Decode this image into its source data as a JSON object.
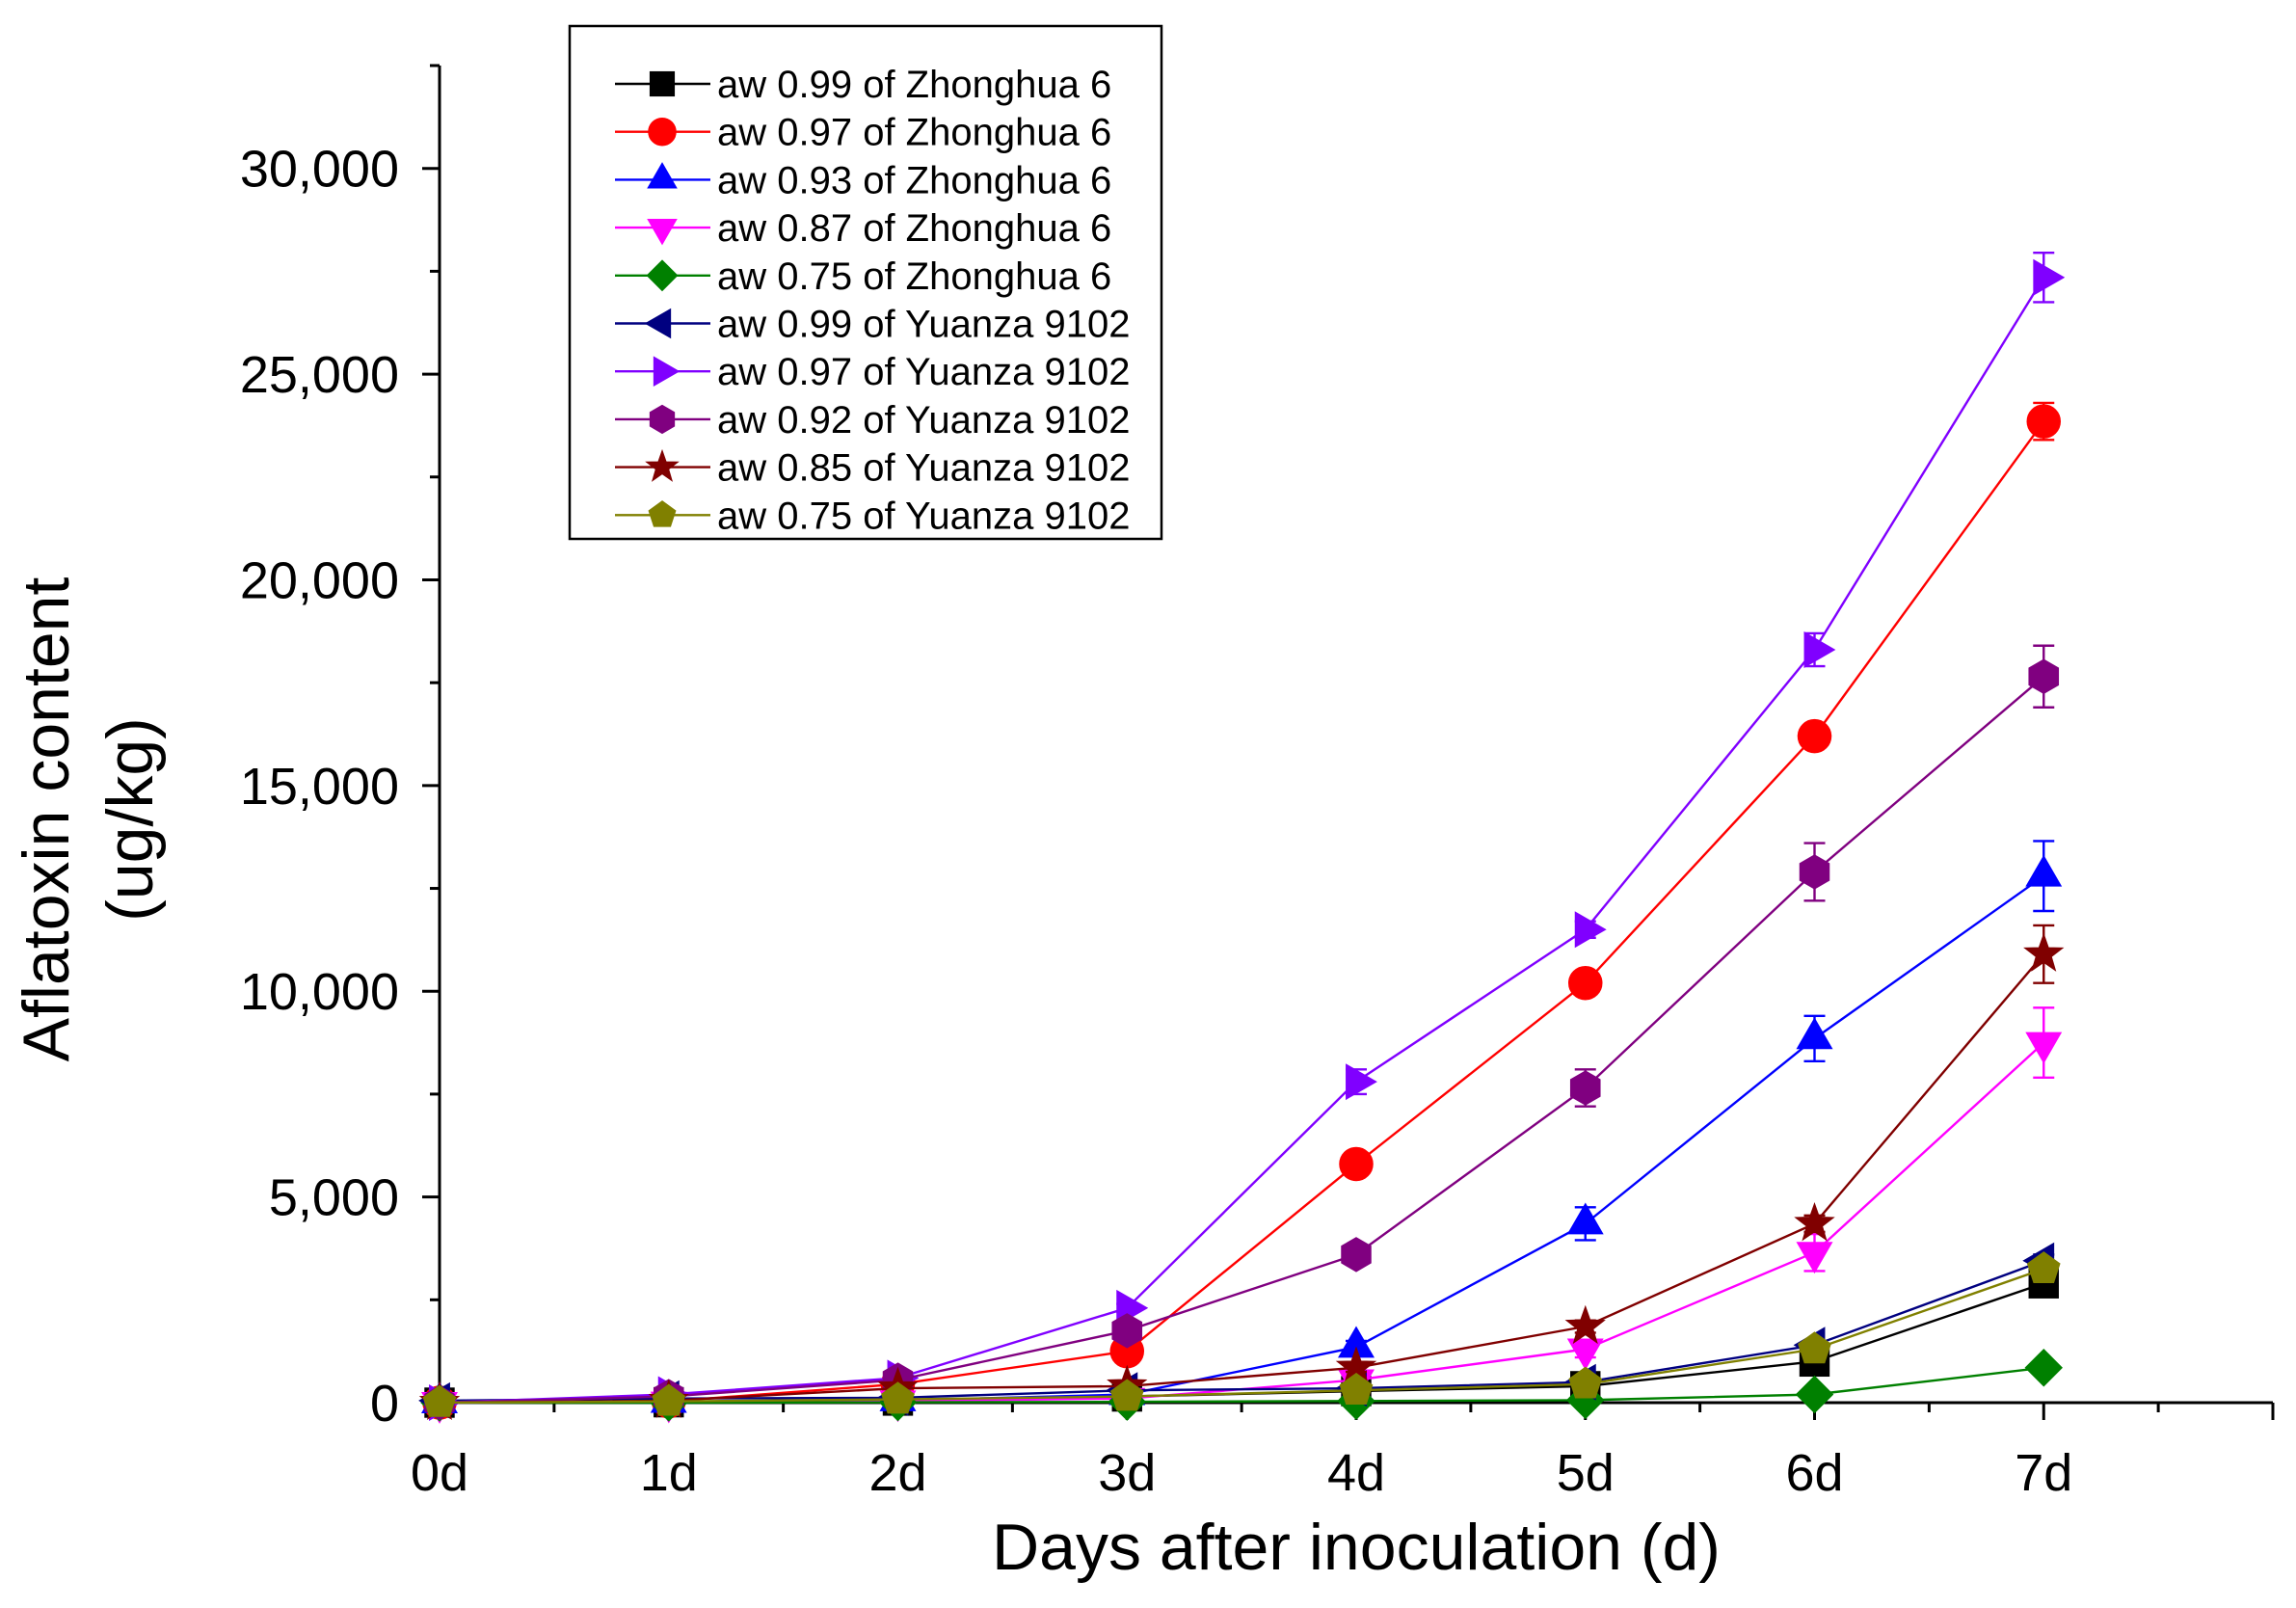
{
  "chart_data": {
    "type": "line",
    "xlabel": "Days after inoculation (d)",
    "ylabel": "Aflatoxin content",
    "ylabel_unit": "(ug/kg)",
    "x": [
      0,
      1,
      2,
      3,
      4,
      5,
      6,
      7
    ],
    "x_tick_labels": [
      "0d",
      "1d",
      "2d",
      "3d",
      "4d",
      "5d",
      "6d",
      "7d"
    ],
    "xlim": [
      0,
      8
    ],
    "ylim": [
      0,
      32500
    ],
    "y_ticks": [
      0,
      5000,
      10000,
      15000,
      20000,
      25000,
      30000
    ],
    "y_tick_labels": [
      "0",
      "5,000",
      "10,000",
      "15,000",
      "20,000",
      "25,000",
      "30,000"
    ],
    "grid": false,
    "legend_position": "top-left",
    "series": [
      {
        "name": "aw 0.99 of Zhonghua 6",
        "color": "#000000",
        "marker": "square",
        "values": [
          0,
          10,
          50,
          150,
          280,
          400,
          1000,
          2900
        ],
        "errors": [
          0,
          0,
          0,
          0,
          0,
          50,
          100,
          150
        ]
      },
      {
        "name": "aw 0.97 of Zhonghua 6",
        "color": "#FF0000",
        "marker": "circle",
        "values": [
          0,
          30,
          450,
          1250,
          5800,
          10200,
          16200,
          23850
        ],
        "errors": [
          0,
          0,
          50,
          100,
          150,
          200,
          250,
          450
        ]
      },
      {
        "name": "aw 0.93 of Zhonghua 6",
        "color": "#0000FF",
        "marker": "triangle-up",
        "values": [
          0,
          10,
          50,
          200,
          1350,
          4350,
          8850,
          12800
        ],
        "errors": [
          0,
          0,
          0,
          50,
          150,
          400,
          550,
          850
        ]
      },
      {
        "name": "aw 0.87 of Zhonghua 6",
        "color": "#FF00FF",
        "marker": "triangle-down",
        "values": [
          0,
          10,
          40,
          100,
          550,
          1300,
          3650,
          8750
        ],
        "errors": [
          0,
          0,
          0,
          0,
          100,
          200,
          450,
          850
        ]
      },
      {
        "name": "aw 0.75 of Zhonghua 6",
        "color": "#008000",
        "marker": "diamond",
        "values": [
          0,
          0,
          10,
          20,
          40,
          60,
          200,
          850
        ],
        "errors": [
          0,
          0,
          0,
          0,
          0,
          0,
          50,
          100
        ]
      },
      {
        "name": "aw 0.99 of Yuanza 9102",
        "color": "#000080",
        "marker": "triangle-left",
        "values": [
          50,
          100,
          120,
          300,
          350,
          500,
          1400,
          3450
        ],
        "errors": [
          0,
          0,
          0,
          0,
          50,
          50,
          100,
          150
        ]
      },
      {
        "name": "aw 0.97 of Yuanza 9102",
        "color": "#8000FF",
        "marker": "triangle-right",
        "values": [
          0,
          200,
          600,
          2300,
          7800,
          11500,
          18300,
          27350
        ],
        "errors": [
          0,
          0,
          50,
          100,
          300,
          200,
          400,
          600
        ]
      },
      {
        "name": "aw 0.92 of Yuanza 9102",
        "color": "#800080",
        "marker": "hexagon",
        "values": [
          0,
          150,
          550,
          1750,
          3600,
          7650,
          12900,
          17650
        ],
        "errors": [
          0,
          0,
          50,
          100,
          200,
          450,
          700,
          750
        ]
      },
      {
        "name": "aw 0.85 of Yuanza 9102",
        "color": "#800000",
        "marker": "star",
        "values": [
          0,
          50,
          350,
          400,
          850,
          1850,
          4350,
          10900
        ],
        "errors": [
          0,
          0,
          0,
          50,
          100,
          150,
          200,
          700
        ]
      },
      {
        "name": "aw 0.75 of Yuanza 9102",
        "color": "#808000",
        "marker": "pentagon",
        "values": [
          0,
          30,
          80,
          150,
          300,
          450,
          1300,
          3250
        ],
        "errors": [
          0,
          0,
          0,
          0,
          50,
          50,
          100,
          150
        ]
      }
    ]
  }
}
